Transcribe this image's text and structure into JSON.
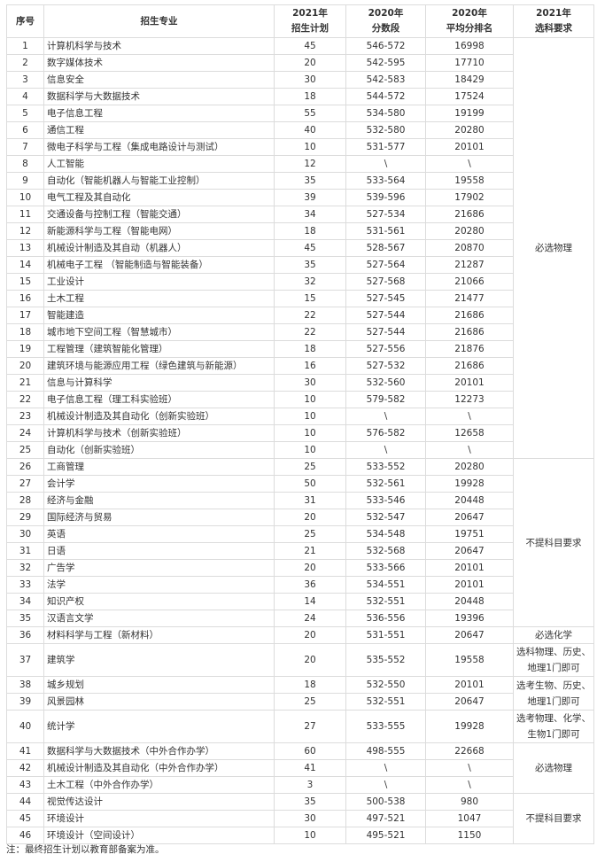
{
  "headers": {
    "index": "序号",
    "major": "招生专业",
    "plan": [
      "2021年",
      "招生计划"
    ],
    "score_range": [
      "2020年",
      "分数段"
    ],
    "avg_rank": [
      "2020年",
      "平均分排名"
    ],
    "requirement": [
      "2021年",
      "选科要求"
    ]
  },
  "rows": [
    {
      "no": "1",
      "major": "计算机科学与技术",
      "plan": "45",
      "range": "546-572",
      "rank": "16998"
    },
    {
      "no": "2",
      "major": "数字媒体技术",
      "plan": "20",
      "range": "542-595",
      "rank": "17710"
    },
    {
      "no": "3",
      "major": "信息安全",
      "plan": "30",
      "range": "542-583",
      "rank": "18429"
    },
    {
      "no": "4",
      "major": "数据科学与大数据技术",
      "plan": "18",
      "range": "544-572",
      "rank": "17524"
    },
    {
      "no": "5",
      "major": "电子信息工程",
      "plan": "55",
      "range": "534-580",
      "rank": "19199"
    },
    {
      "no": "6",
      "major": "通信工程",
      "plan": "40",
      "range": "532-580",
      "rank": "20280"
    },
    {
      "no": "7",
      "major": "微电子科学与工程（集成电路设计与测试）",
      "plan": "10",
      "range": "531-577",
      "rank": "20101"
    },
    {
      "no": "8",
      "major": "人工智能",
      "plan": "12",
      "range": "\\",
      "rank": "\\"
    },
    {
      "no": "9",
      "major": "自动化（智能机器人与智能工业控制）",
      "plan": "35",
      "range": "533-564",
      "rank": "19558"
    },
    {
      "no": "10",
      "major": "电气工程及其自动化",
      "plan": "39",
      "range": "539-596",
      "rank": "17902"
    },
    {
      "no": "11",
      "major": "交通设备与控制工程（智能交通）",
      "plan": "34",
      "range": "527-534",
      "rank": "21686"
    },
    {
      "no": "12",
      "major": "新能源科学与工程（智能电网）",
      "plan": "18",
      "range": "531-561",
      "rank": "20280"
    },
    {
      "no": "13",
      "major": "机械设计制造及其自动（机器人）",
      "plan": "45",
      "range": "528-567",
      "rank": "20870"
    },
    {
      "no": "14",
      "major": "机械电子工程 （智能制造与智能装备）",
      "plan": "35",
      "range": "527-564",
      "rank": "21287"
    },
    {
      "no": "15",
      "major": "工业设计",
      "plan": "32",
      "range": "527-568",
      "rank": "21066"
    },
    {
      "no": "16",
      "major": "土木工程",
      "plan": "15",
      "range": "527-545",
      "rank": "21477"
    },
    {
      "no": "17",
      "major": "智能建造",
      "plan": "22",
      "range": "527-544",
      "rank": "21686"
    },
    {
      "no": "18",
      "major": "城市地下空间工程（智慧城市）",
      "plan": "22",
      "range": "527-544",
      "rank": "21686"
    },
    {
      "no": "19",
      "major": "工程管理（建筑智能化管理）",
      "plan": "18",
      "range": "527-556",
      "rank": "21876"
    },
    {
      "no": "20",
      "major": "建筑环境与能源应用工程（绿色建筑与新能源）",
      "plan": "16",
      "range": "527-532",
      "rank": "21686"
    },
    {
      "no": "21",
      "major": "信息与计算科学",
      "plan": "30",
      "range": "532-560",
      "rank": "20101"
    },
    {
      "no": "22",
      "major": "电子信息工程（理工科实验班）",
      "plan": "10",
      "range": "579-582",
      "rank": "12273"
    },
    {
      "no": "23",
      "major": "机械设计制造及其自动化（创新实验班）",
      "plan": "10",
      "range": "\\",
      "rank": "\\"
    },
    {
      "no": "24",
      "major": "计算机科学与技术（创新实验班）",
      "plan": "10",
      "range": "576-582",
      "rank": "12658"
    },
    {
      "no": "25",
      "major": "自动化（创新实验班）",
      "plan": "10",
      "range": "\\",
      "rank": "\\"
    },
    {
      "no": "26",
      "major": "工商管理",
      "plan": "25",
      "range": "533-552",
      "rank": "20280"
    },
    {
      "no": "27",
      "major": "会计学",
      "plan": "50",
      "range": "532-561",
      "rank": "19928"
    },
    {
      "no": "28",
      "major": "经济与金融",
      "plan": "31",
      "range": "533-546",
      "rank": "20448"
    },
    {
      "no": "29",
      "major": "国际经济与贸易",
      "plan": "20",
      "range": "532-547",
      "rank": "20647"
    },
    {
      "no": "30",
      "major": "英语",
      "plan": "25",
      "range": "534-548",
      "rank": "19751"
    },
    {
      "no": "31",
      "major": "日语",
      "plan": "21",
      "range": "532-568",
      "rank": "20647"
    },
    {
      "no": "32",
      "major": "广告学",
      "plan": "20",
      "range": "533-566",
      "rank": "20101"
    },
    {
      "no": "33",
      "major": "法学",
      "plan": "36",
      "range": "534-551",
      "rank": "20101"
    },
    {
      "no": "34",
      "major": "知识产权",
      "plan": "14",
      "range": "532-551",
      "rank": "20448"
    },
    {
      "no": "35",
      "major": "汉语言文学",
      "plan": "24",
      "range": "536-556",
      "rank": "19396"
    },
    {
      "no": "36",
      "major": "材料科学与工程（新材料）",
      "plan": "20",
      "range": "531-551",
      "rank": "20647"
    },
    {
      "no": "37",
      "major": "建筑学",
      "plan": "20",
      "range": "535-552",
      "rank": "19558",
      "tall": true
    },
    {
      "no": "38",
      "major": "城乡规划",
      "plan": "18",
      "range": "532-550",
      "rank": "20101"
    },
    {
      "no": "39",
      "major": "风景园林",
      "plan": "25",
      "range": "532-551",
      "rank": "20647"
    },
    {
      "no": "40",
      "major": "统计学",
      "plan": "27",
      "range": "533-555",
      "rank": "19928",
      "tall": true
    },
    {
      "no": "41",
      "major": "数据科学与大数据技术（中外合作办学）",
      "plan": "60",
      "range": "498-555",
      "rank": "22668"
    },
    {
      "no": "42",
      "major": "机械设计制造及其自动化（中外合作办学）",
      "plan": "41",
      "range": "\\",
      "rank": "\\"
    },
    {
      "no": "43",
      "major": "土木工程（中外合作办学）",
      "plan": "3",
      "range": "\\",
      "rank": "\\"
    },
    {
      "no": "44",
      "major": "视觉传达设计",
      "plan": "35",
      "range": "500-538",
      "rank": "980"
    },
    {
      "no": "45",
      "major": "环境设计",
      "plan": "30",
      "range": "497-521",
      "rank": "1047"
    },
    {
      "no": "46",
      "major": "环境设计（空间设计）",
      "plan": "10",
      "range": "495-521",
      "rank": "1150"
    }
  ],
  "requirement_groups": [
    {
      "start": 1,
      "span": 25,
      "text": "必选物理"
    },
    {
      "start": 26,
      "span": 10,
      "text": "不提科目要求"
    },
    {
      "start": 36,
      "span": 1,
      "text": "必选化学"
    },
    {
      "start": 37,
      "span": 1,
      "text": "选科物理、历史、地理1门即可"
    },
    {
      "start": 38,
      "span": 2,
      "text": "选考生物、历史、地理1门即可"
    },
    {
      "start": 40,
      "span": 1,
      "text": "选考物理、化学、生物1门即可"
    },
    {
      "start": 41,
      "span": 3,
      "text": "必选物理"
    },
    {
      "start": 44,
      "span": 3,
      "text": "不提科目要求"
    }
  ],
  "note": "注：最终招生计划以教育部备案为准。"
}
